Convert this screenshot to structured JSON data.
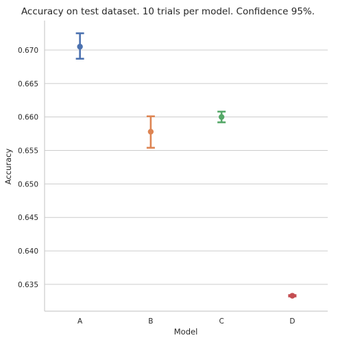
{
  "chart_data": {
    "type": "pointplot",
    "title": "Accuracy on test dataset. 10 trials per model. Confidence 95%.",
    "xlabel": "Model",
    "ylabel": "Accuracy",
    "categories": [
      "A",
      "B",
      "C",
      "D"
    ],
    "ylim": [
      0.631,
      0.6744
    ],
    "yticks": [
      0.635,
      0.64,
      0.645,
      0.65,
      0.655,
      0.66,
      0.665,
      0.67
    ],
    "ytick_labels": [
      "0.635",
      "0.640",
      "0.645",
      "0.650",
      "0.655",
      "0.660",
      "0.665",
      "0.670"
    ],
    "grid": "horizontal",
    "points": [
      {
        "category": "A",
        "mean": 0.6705,
        "ci_low": 0.6687,
        "ci_high": 0.6725,
        "color": "#4c72b0"
      },
      {
        "category": "B",
        "mean": 0.6578,
        "ci_low": 0.6554,
        "ci_high": 0.6601,
        "color": "#dd8452"
      },
      {
        "category": "C",
        "mean": 0.66,
        "ci_low": 0.6592,
        "ci_high": 0.6608,
        "color": "#55a868"
      },
      {
        "category": "D",
        "mean": 0.6333,
        "ci_low": 0.6332,
        "ci_high": 0.6334,
        "color": "#c44e52"
      }
    ]
  }
}
